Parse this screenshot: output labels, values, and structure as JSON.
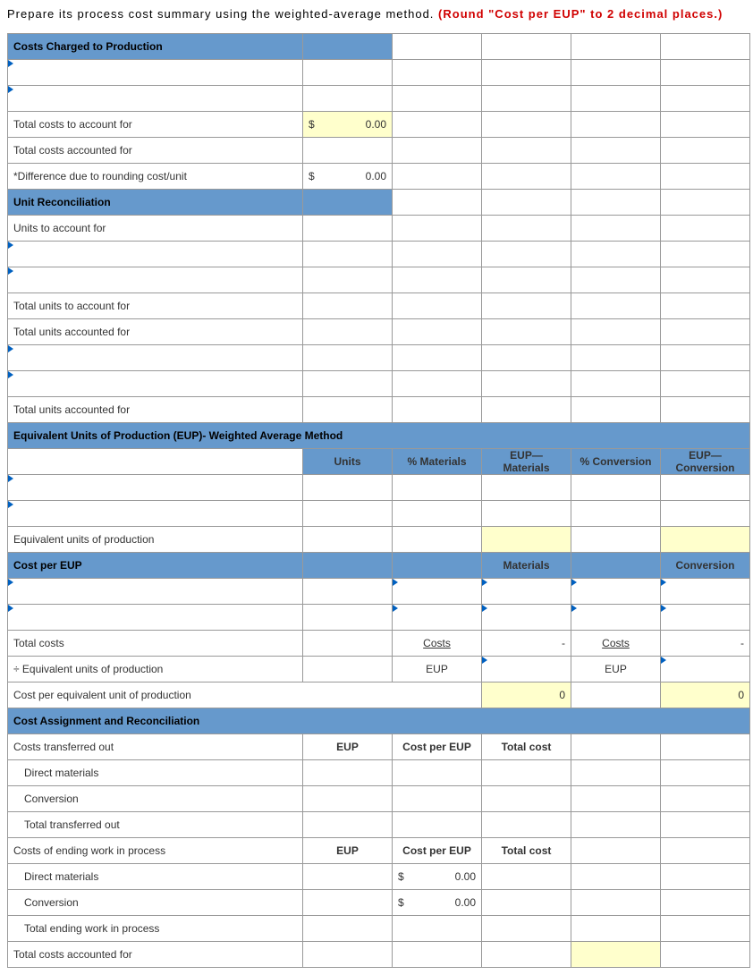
{
  "instruction": {
    "black": "Prepare its process cost summary using the weighted-average method. ",
    "red": "(Round \"Cost per EUP\" to 2 decimal places.)"
  },
  "sections": {
    "costs_charged": "Costs Charged to Production",
    "unit_recon": "Unit Reconciliation",
    "eup": "Equivalent Units of Production (EUP)- Weighted Average Method",
    "cost_per_eup": "Cost per EUP",
    "cost_assign": "Cost Assignment and Reconciliation"
  },
  "labels": {
    "total_costs_account_for": "Total costs to account for",
    "total_costs_accounted_for": "Total costs accounted for",
    "diff_rounding": "*Difference due to rounding cost/unit",
    "units_account_for": "Units to account for",
    "total_units_account_for": "Total units to account for",
    "total_units_accounted_for": "Total units accounted for",
    "equiv_units_prod": "Equivalent units of production",
    "total_costs": "Total costs",
    "div_equiv_units": "÷ Equivalent units of production",
    "cost_per_equiv_unit": "Cost per equivalent unit of production",
    "costs_transferred_out": "Costs transferred out",
    "direct_materials": "Direct materials",
    "conversion": "Conversion",
    "total_transferred_out": "Total transferred out",
    "costs_ending_wip": "Costs of ending work in process",
    "total_ending_wip": "Total ending work in process",
    "total_costs_accounted_for2": "Total costs accounted for"
  },
  "col_headers": {
    "units": "Units",
    "pct_materials": "% Materials",
    "eup_materials": "EUP—Materials",
    "pct_conversion": "% Conversion",
    "eup_conversion": "EUP—Conversion",
    "materials": "Materials",
    "conversion": "Conversion",
    "eup": "EUP",
    "cost_per_eup": "Cost per EUP",
    "total_cost": "Total cost",
    "costs": "Costs",
    "eup_short": "EUP"
  },
  "values": {
    "zero_money": "0.00",
    "zero": "0",
    "dash": "-",
    "dollar": "$"
  },
  "colors": {
    "header_bg": "#6699cc",
    "highlight_bg": "#ffffcc",
    "border": "#999999",
    "red": "#d00000"
  }
}
